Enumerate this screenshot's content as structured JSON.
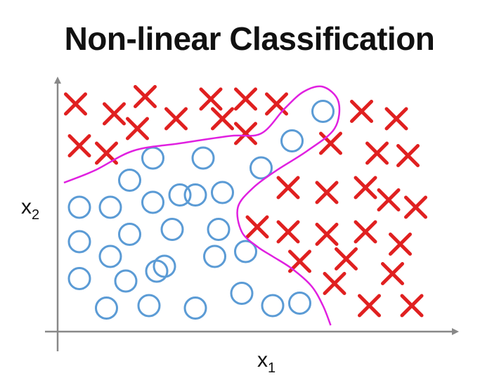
{
  "chart_data": {
    "type": "scatter",
    "title": "Non-linear Classification",
    "xlabel": "x",
    "xlabel_sub": "1",
    "ylabel": "x",
    "ylabel_sub": "2",
    "xlim": [
      0,
      10
    ],
    "ylim": [
      0,
      10
    ],
    "grid": false,
    "legend": "none",
    "colors": {
      "positive": "#e02020",
      "negative": "#5b9bd5",
      "boundary": "#e020e0",
      "axis": "#888888"
    },
    "series": [
      {
        "marker": "x",
        "points": [
          [
            0.5,
            9.2
          ],
          [
            1.5,
            8.8
          ],
          [
            2.1,
            8.2
          ],
          [
            2.3,
            9.5
          ],
          [
            3.1,
            8.6
          ],
          [
            4.0,
            9.4
          ],
          [
            4.3,
            8.6
          ],
          [
            4.9,
            9.4
          ],
          [
            4.9,
            8.0
          ],
          [
            5.7,
            9.2
          ],
          [
            0.6,
            7.5
          ],
          [
            1.3,
            7.2
          ],
          [
            7.1,
            7.6
          ],
          [
            7.9,
            8.9
          ],
          [
            8.3,
            7.2
          ],
          [
            8.8,
            8.6
          ],
          [
            9.1,
            7.1
          ],
          [
            6.0,
            5.8
          ],
          [
            7.0,
            5.6
          ],
          [
            8.0,
            5.8
          ],
          [
            8.6,
            5.3
          ],
          [
            9.3,
            5.0
          ],
          [
            5.2,
            4.2
          ],
          [
            6.0,
            4.0
          ],
          [
            7.0,
            3.9
          ],
          [
            8.0,
            4.0
          ],
          [
            8.9,
            3.5
          ],
          [
            6.3,
            2.8
          ],
          [
            7.5,
            2.9
          ],
          [
            8.7,
            2.3
          ],
          [
            7.2,
            1.9
          ],
          [
            8.1,
            1.0
          ],
          [
            9.2,
            1.0
          ]
        ]
      },
      {
        "marker": "o",
        "points": [
          [
            6.9,
            8.9
          ],
          [
            6.1,
            7.7
          ],
          [
            2.5,
            7.0
          ],
          [
            3.8,
            7.0
          ],
          [
            5.3,
            6.6
          ],
          [
            1.9,
            6.1
          ],
          [
            3.2,
            5.5
          ],
          [
            3.6,
            5.5
          ],
          [
            4.3,
            5.6
          ],
          [
            2.5,
            5.2
          ],
          [
            0.6,
            5.0
          ],
          [
            1.4,
            5.0
          ],
          [
            0.6,
            3.6
          ],
          [
            1.9,
            3.9
          ],
          [
            3.0,
            4.1
          ],
          [
            4.2,
            4.1
          ],
          [
            1.4,
            3.0
          ],
          [
            2.8,
            2.6
          ],
          [
            4.1,
            3.0
          ],
          [
            4.9,
            3.2
          ],
          [
            0.6,
            2.1
          ],
          [
            1.8,
            2.0
          ],
          [
            2.6,
            2.4
          ],
          [
            1.3,
            0.9
          ],
          [
            2.4,
            1.0
          ],
          [
            3.6,
            0.9
          ],
          [
            4.8,
            1.5
          ],
          [
            5.6,
            1.0
          ],
          [
            6.3,
            1.1
          ]
        ]
      }
    ],
    "boundary": [
      [
        0.2,
        6.0
      ],
      [
        1.0,
        6.5
      ],
      [
        2.0,
        7.3
      ],
      [
        3.2,
        7.6
      ],
      [
        4.5,
        7.9
      ],
      [
        5.3,
        8.0
      ],
      [
        5.9,
        9.0
      ],
      [
        6.4,
        9.7
      ],
      [
        6.9,
        9.9
      ],
      [
        7.3,
        9.3
      ],
      [
        7.2,
        8.2
      ],
      [
        6.5,
        7.3
      ],
      [
        5.7,
        6.5
      ],
      [
        5.1,
        5.8
      ],
      [
        4.7,
        5.0
      ],
      [
        4.8,
        4.0
      ],
      [
        5.2,
        3.4
      ],
      [
        5.6,
        3.0
      ],
      [
        6.1,
        2.5
      ],
      [
        6.6,
        1.8
      ],
      [
        6.9,
        1.0
      ],
      [
        7.1,
        0.2
      ]
    ]
  }
}
